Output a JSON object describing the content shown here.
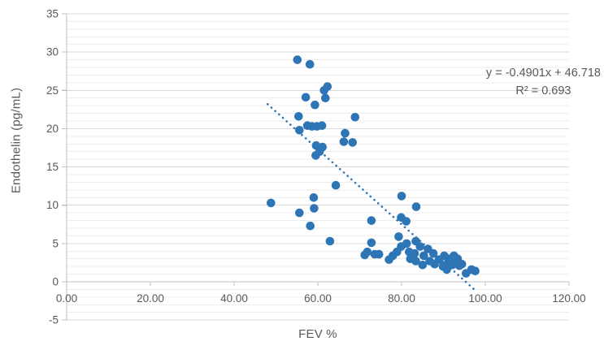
{
  "chart_data": {
    "type": "scatter",
    "title": "",
    "xlabel": "FEV %",
    "ylabel": "Endothelin (pg/mL)",
    "xlim": [
      0,
      120
    ],
    "ylim": [
      -5,
      35
    ],
    "x_tick_labels": [
      "0.00",
      "20.00",
      "40.00",
      "60.00",
      "80.00",
      "100.00",
      "120.00"
    ],
    "x_tick_values": [
      0,
      20,
      40,
      60,
      80,
      100,
      120
    ],
    "y_tick_values": [
      -5,
      0,
      5,
      10,
      15,
      20,
      25,
      30,
      35
    ],
    "y_minor_step": 1,
    "grid": "horizontal only, minor + major",
    "legend_position": "none",
    "annotation": {
      "equation": "y = -0.4901x + 46.718",
      "r_squared": "R² = 0.693"
    },
    "trendline": {
      "style": "dotted",
      "slope": -0.4901,
      "intercept": 46.718,
      "x_start": 48,
      "x_end": 98
    },
    "points": [
      [
        55.1,
        29.0
      ],
      [
        58.1,
        28.4
      ],
      [
        62.3,
        25.5
      ],
      [
        61.5,
        25.0
      ],
      [
        61.8,
        24.0
      ],
      [
        57.1,
        24.1
      ],
      [
        59.3,
        23.1
      ],
      [
        55.4,
        21.6
      ],
      [
        68.9,
        21.5
      ],
      [
        57.5,
        20.4
      ],
      [
        58.6,
        20.3
      ],
      [
        59.8,
        20.3
      ],
      [
        61.0,
        20.4
      ],
      [
        55.6,
        19.8
      ],
      [
        66.5,
        19.4
      ],
      [
        66.2,
        18.3
      ],
      [
        68.3,
        18.2
      ],
      [
        59.6,
        17.8
      ],
      [
        61.1,
        17.6
      ],
      [
        60.4,
        17.0
      ],
      [
        59.5,
        16.5
      ],
      [
        64.3,
        12.6
      ],
      [
        48.8,
        10.3
      ],
      [
        59.0,
        11.0
      ],
      [
        55.6,
        9.0
      ],
      [
        59.1,
        9.6
      ],
      [
        58.2,
        7.3
      ],
      [
        62.9,
        5.3
      ],
      [
        80.0,
        11.2
      ],
      [
        83.5,
        9.8
      ],
      [
        72.8,
        8.0
      ],
      [
        79.9,
        8.4
      ],
      [
        81.1,
        7.9
      ],
      [
        72.8,
        5.1
      ],
      [
        71.8,
        3.9
      ],
      [
        71.2,
        3.5
      ],
      [
        73.6,
        3.6
      ],
      [
        74.6,
        3.6
      ],
      [
        77.0,
        2.9
      ],
      [
        77.9,
        3.4
      ],
      [
        78.9,
        3.9
      ],
      [
        79.3,
        5.9
      ],
      [
        79.9,
        4.6
      ],
      [
        81.2,
        5.0
      ],
      [
        81.8,
        3.9
      ],
      [
        83.4,
        5.3
      ],
      [
        84.4,
        4.6
      ],
      [
        83.1,
        3.7
      ],
      [
        85.3,
        3.4
      ],
      [
        86.3,
        4.3
      ],
      [
        87.6,
        3.7
      ],
      [
        86.7,
        2.7
      ],
      [
        87.9,
        2.3
      ],
      [
        88.9,
        2.9
      ],
      [
        89.9,
        2.0
      ],
      [
        90.2,
        3.4
      ],
      [
        91.2,
        2.7
      ],
      [
        92.1,
        2.3
      ],
      [
        85.0,
        2.2
      ],
      [
        82.1,
        3.0
      ],
      [
        83.4,
        2.7
      ],
      [
        91.5,
        3.0
      ],
      [
        92.5,
        3.4
      ],
      [
        93.4,
        3.0
      ],
      [
        94.4,
        2.3
      ],
      [
        92.1,
        2.2
      ],
      [
        90.8,
        1.6
      ],
      [
        93.1,
        2.9
      ],
      [
        93.8,
        2.1
      ],
      [
        95.4,
        1.1
      ],
      [
        96.7,
        1.6
      ],
      [
        97.6,
        1.4
      ]
    ]
  },
  "colors": {
    "marker": "#2E75B6",
    "trendline": "#2E75B6",
    "axis_line": "#BFBFBF",
    "major_grid": "#D9D9D9",
    "minor_grid": "#EDEDED",
    "text": "#595959"
  }
}
